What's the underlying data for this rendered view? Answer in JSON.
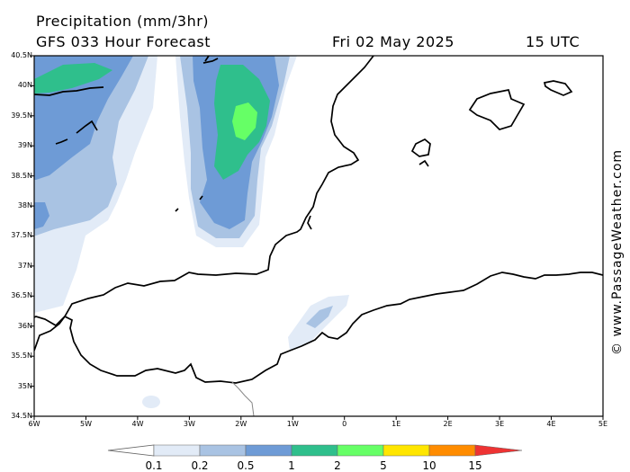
{
  "header": {
    "title": "Precipitation (mm/3hr)",
    "subtitle": "GFS 033 Hour Forecast",
    "datetime": "Fri 02 May 2025",
    "utc": "15 UTC"
  },
  "axes": {
    "lat_labels": [
      "40.5N",
      "40N",
      "39.5N",
      "39N",
      "38.5N",
      "38N",
      "37.5N",
      "37N",
      "36.5N",
      "36N",
      "35.5N",
      "35N",
      "34.5N"
    ],
    "lon_labels": [
      "6W",
      "5W",
      "4W",
      "3W",
      "2W",
      "1W",
      "0",
      "1E",
      "2E",
      "3E",
      "4E",
      "5E"
    ]
  },
  "watermark": "© www.PassageWeather.com",
  "legend": {
    "labels": [
      "0.1",
      "0.2",
      "0.5",
      "1",
      "2",
      "5",
      "10",
      "15"
    ],
    "colors": [
      "#e2ebf7",
      "#a9c3e3",
      "#6e9bd6",
      "#2fbf8c",
      "#66ff66",
      "#ffe600",
      "#ff8c00",
      "#ee3333"
    ]
  },
  "colors": {
    "land": "#ffffff",
    "coastline": "#000000",
    "border": "#888888"
  }
}
